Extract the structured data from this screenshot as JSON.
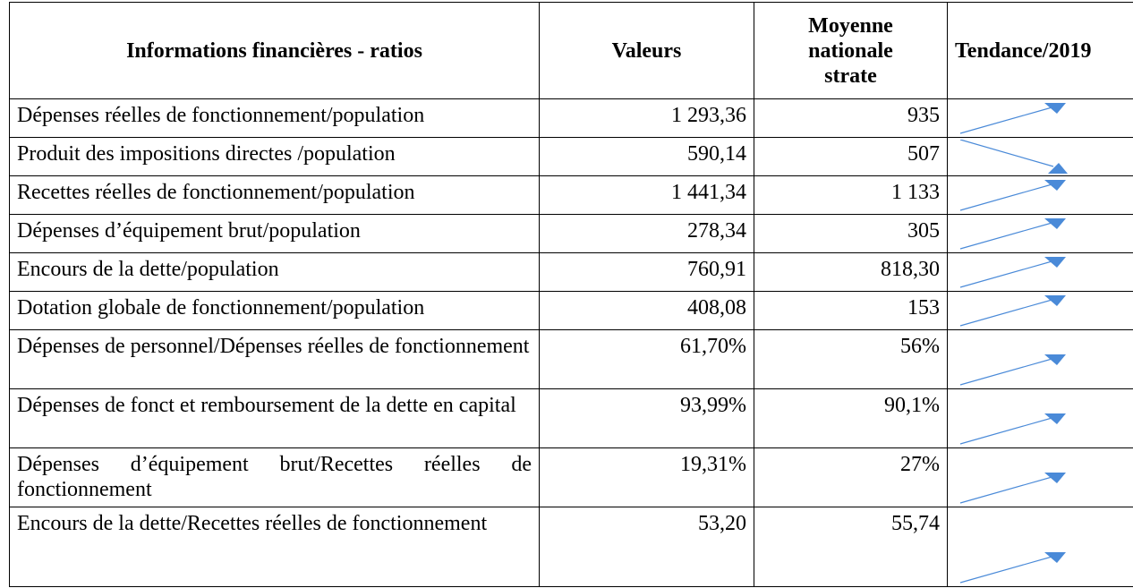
{
  "table": {
    "header": [
      "Informations financières - ratios",
      "Valeurs",
      "Moyenne nationale strate",
      "Tendance/2019"
    ],
    "rows": [
      [
        "Dépenses réelles de fonctionnement/population",
        "1 293,36",
        "935"
      ],
      [
        "Produit des impositions directes /population",
        "590,14",
        "507"
      ],
      [
        "Recettes réelles de fonctionnement/population",
        "1 441,34",
        "1 133"
      ],
      [
        "Dépenses d’équipement brut/population",
        "278,34",
        "305"
      ],
      [
        "Encours de la dette/population",
        "760,91",
        "818,30"
      ],
      [
        "Dotation globale de fonctionnement/population",
        "408,08",
        "153"
      ],
      [
        "Dépenses de personnel/Dépenses réelles de fonctionnement",
        "61,70%",
        "56%"
      ],
      [
        "Dépenses de fonct et remboursement de la dette en capital",
        "93,99%",
        "90,1%"
      ],
      [
        "Dépenses d’équipement brut/Recettes réelles de fonctionnement",
        "19,31%",
        "27%"
      ],
      [
        "Encours de la dette/Recettes réelles de fonctionnement",
        "53,20",
        "55,74"
      ]
    ]
  }
}
